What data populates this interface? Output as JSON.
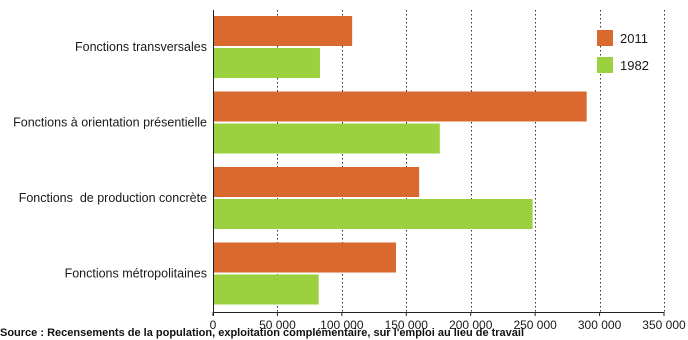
{
  "chart_data": {
    "type": "bar",
    "orientation": "horizontal",
    "categories": [
      "Fonctions transversales",
      "Fonctions à orientation présentielle",
      "Fonctions  de production concrète",
      "Fonctions métropolitaines"
    ],
    "series": [
      {
        "name": "2011",
        "color": "#d9692f",
        "values": [
          108000,
          290000,
          160000,
          142000
        ]
      },
      {
        "name": "1982",
        "color": "#9bd03f",
        "values": [
          83000,
          176000,
          248000,
          82000
        ]
      }
    ],
    "xlim": [
      0,
      350000
    ],
    "xticks": [
      0,
      50000,
      100000,
      150000,
      200000,
      250000,
      300000,
      350000
    ],
    "xtick_labels": [
      "0",
      "50 000",
      "100 000",
      "150 000",
      "200 000",
      "250 000",
      "300 000",
      "350 000"
    ],
    "grid": "vertical dashed",
    "legend_position": "top-right",
    "title": "",
    "xlabel": "",
    "ylabel": ""
  },
  "source_text": "Source : Recensements de la population, exploitation complémentaire, sur l'emploi au lieu de travail"
}
